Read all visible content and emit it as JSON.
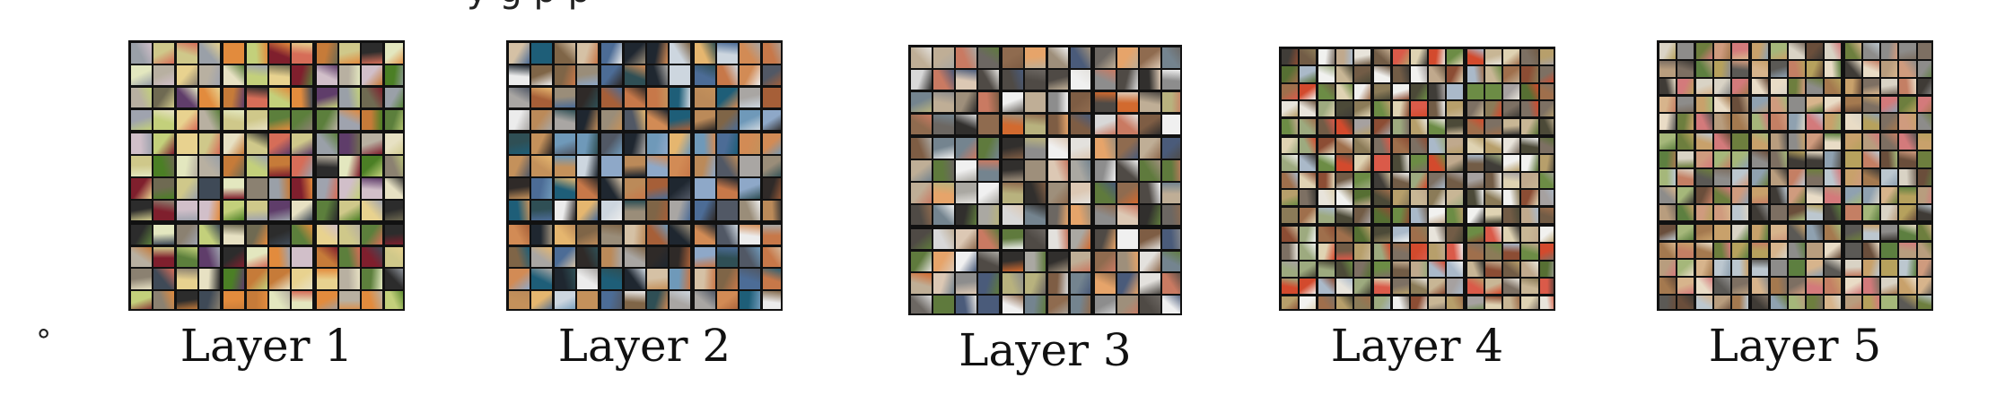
{
  "figure": {
    "top_clipped_text": "y           g              p          p",
    "bullet": "∘",
    "layers": [
      {
        "label": "Layer 1",
        "palette": [
          "#e3e7bf",
          "#cfc88a",
          "#6f6a52",
          "#b8b0a1",
          "#9aa0a8",
          "#d1bfc9",
          "#c67b39",
          "#e28b3d",
          "#5c7f3c",
          "#9fa3ae",
          "#4b7f25",
          "#e7e1c3",
          "#c3d07b",
          "#7f1f2d",
          "#d66d58",
          "#e8d28f",
          "#2c2c2c",
          "#3f4a57",
          "#8b8171",
          "#5f3d6a"
        ]
      },
      {
        "label": "Layer 2",
        "palette": [
          "#1f2730",
          "#2f4f55",
          "#9a8d79",
          "#c4915b",
          "#d5c1a5",
          "#bb8a59",
          "#a65f38",
          "#d28b55",
          "#e5b66f",
          "#ececec",
          "#a9a6a3",
          "#515865",
          "#8ea8c8",
          "#6f99b9",
          "#1e5e78",
          "#2f2a28",
          "#7f6547",
          "#cdd6df",
          "#4c6c96",
          "#c77849"
        ]
      },
      {
        "label": "Layer 3",
        "palette": [
          "#aaa8a2",
          "#6c6762",
          "#4f4a45",
          "#e3e1dd",
          "#9e8f7b",
          "#bfae96",
          "#5f7a3d",
          "#d26a2f",
          "#d8d8d8",
          "#74848f",
          "#312f2d",
          "#e6a46a",
          "#8f6b4f",
          "#dcc8b4",
          "#4a5b7a",
          "#f0f0f0",
          "#7e5d44",
          "#c97a62",
          "#b8b27e",
          "#8d8d8d"
        ]
      },
      {
        "label": "Layer 4",
        "palette": [
          "#8b7b58",
          "#c0a98d",
          "#566f33",
          "#d34a2d",
          "#e8e4db",
          "#403d38",
          "#9f6f4c",
          "#c8b695",
          "#6c8c45",
          "#aab9c9",
          "#7d7063",
          "#da5a49",
          "#f1f1ef",
          "#4c4a38",
          "#b79f6b",
          "#a6a1a0",
          "#8c4d34",
          "#dfd3b3",
          "#725c46",
          "#9daa7f"
        ]
      },
      {
        "label": "Layer 5",
        "palette": [
          "#7d6f62",
          "#b89d7e",
          "#6d7e3e",
          "#a5b77a",
          "#c8a16b",
          "#d9d3c5",
          "#5b5955",
          "#cf9b7e",
          "#8fa1b0",
          "#a4794f",
          "#5d7f40",
          "#e9dcc6",
          "#c47f64",
          "#d37a7b",
          "#8d8c8a",
          "#6a4e3b",
          "#b6a15d",
          "#d7b48c",
          "#3f3b36",
          "#bcc7cf"
        ]
      }
    ]
  }
}
